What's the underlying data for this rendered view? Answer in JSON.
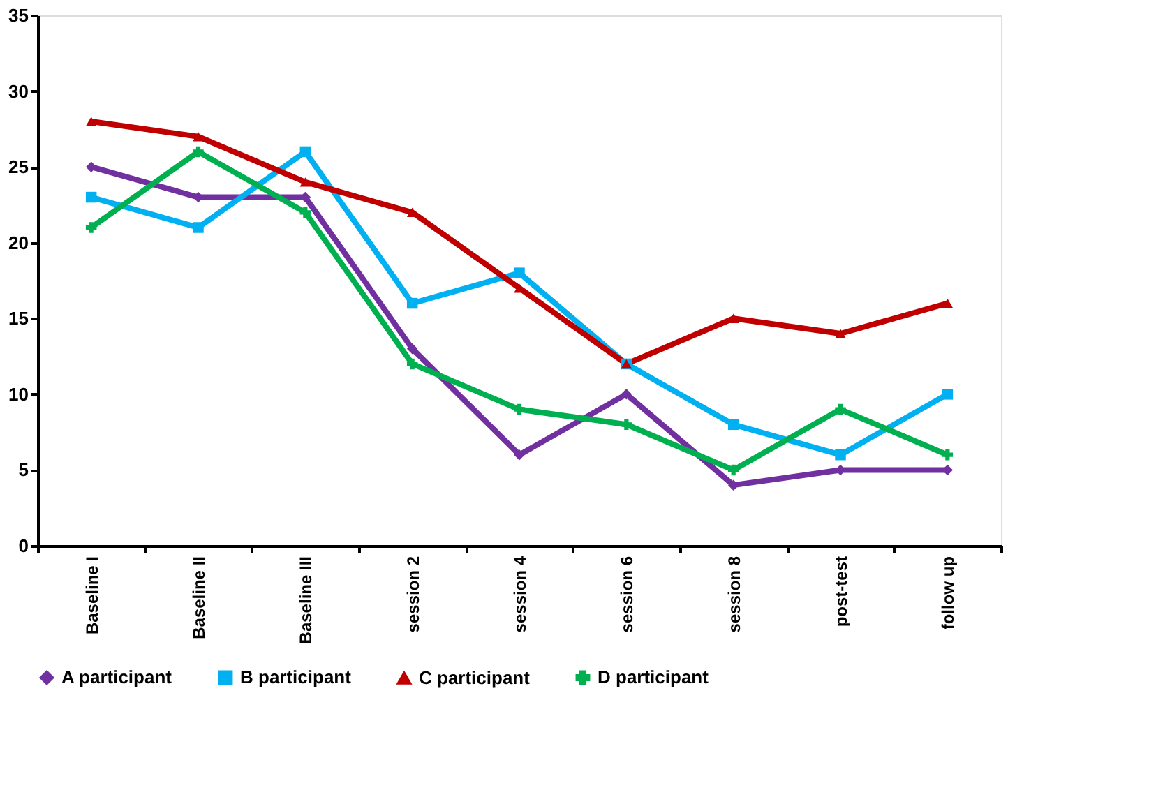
{
  "chart_data": {
    "type": "line",
    "categories": [
      "Baseline I",
      "Baseline II",
      "Baseline III",
      "session 2",
      "session 4",
      "session 6",
      "session 8",
      "post-test",
      "follow up"
    ],
    "series": [
      {
        "name": "A participant",
        "color": "#7030a0",
        "marker": "diamond",
        "values": [
          25,
          23,
          23,
          13,
          6,
          10,
          4,
          5,
          5
        ]
      },
      {
        "name": "B participant",
        "color": "#00b0f0",
        "marker": "square",
        "values": [
          23,
          21,
          26,
          16,
          18,
          12,
          8,
          6,
          10
        ]
      },
      {
        "name": "C participant",
        "color": "#c00000",
        "marker": "triangle",
        "values": [
          28,
          27,
          24,
          22,
          17,
          12,
          15,
          14,
          16
        ]
      },
      {
        "name": "D participant",
        "color": "#00b050",
        "marker": "cross",
        "values": [
          21,
          26,
          22,
          12,
          9,
          8,
          5,
          9,
          6
        ]
      }
    ],
    "ylim": [
      0,
      35
    ],
    "yticks": [
      0,
      5,
      10,
      15,
      20,
      25,
      30,
      35
    ],
    "grid": false,
    "legend": "bottom",
    "line_style": "solid"
  }
}
